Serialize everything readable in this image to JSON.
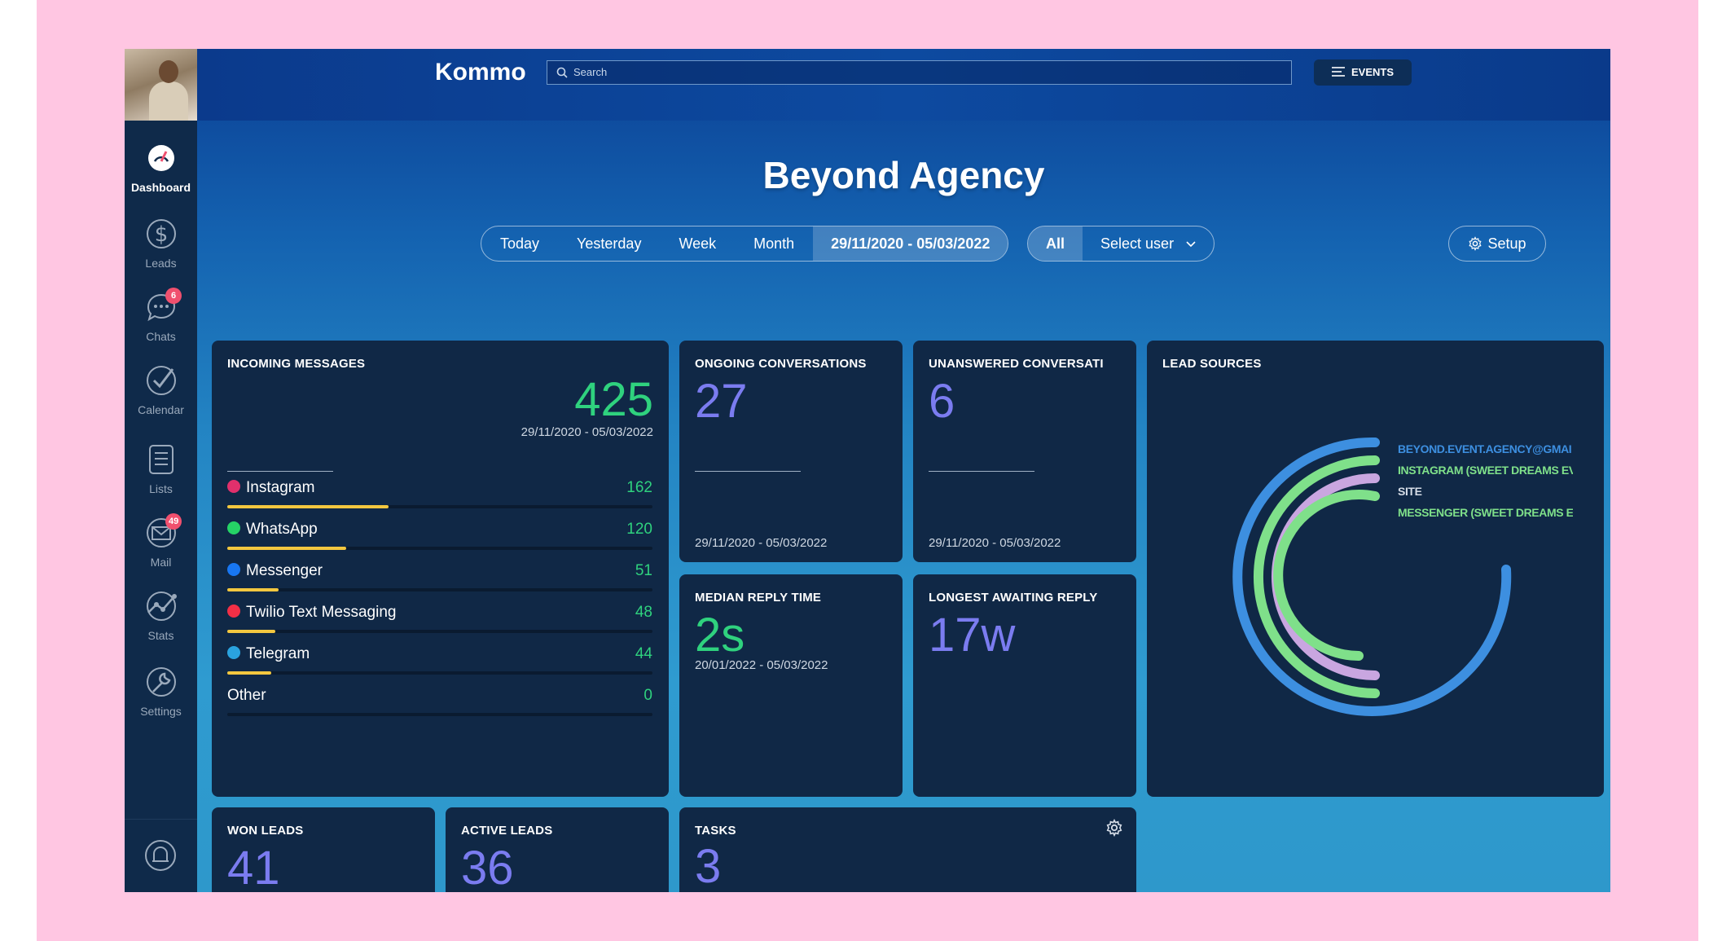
{
  "app": {
    "logo": "Kommo",
    "title": "Beyond Agency"
  },
  "sidebar": {
    "items": [
      {
        "label": "Dashboard",
        "icon": "dashboard-icon",
        "active": true
      },
      {
        "label": "Leads",
        "icon": "dollar-icon"
      },
      {
        "label": "Chats",
        "icon": "chat-icon",
        "badge": "6"
      },
      {
        "label": "Calendar",
        "icon": "checkmark-icon"
      },
      {
        "label": "Lists",
        "icon": "list-icon"
      },
      {
        "label": "Mail",
        "icon": "mail-icon",
        "badge": "49"
      },
      {
        "label": "Stats",
        "icon": "stats-icon"
      },
      {
        "label": "Settings",
        "icon": "settings-icon"
      }
    ]
  },
  "topbar": {
    "search_placeholder": "Search",
    "events_label": "EVENTS"
  },
  "filters": {
    "periods": [
      "Today",
      "Yesterday",
      "Week",
      "Month",
      "29/11/2020 - 05/03/2022"
    ],
    "selected_period": "29/11/2020 - 05/03/2022",
    "scope_all": "All",
    "select_user": "Select user",
    "setup_label": "Setup"
  },
  "incoming": {
    "title": "INCOMING MESSAGES",
    "total": "425",
    "range": "29/11/2020 - 05/03/2022",
    "sources": [
      {
        "name": "Instagram",
        "value": "162",
        "share": 0.38,
        "color": "#e1306c"
      },
      {
        "name": "WhatsApp",
        "value": "120",
        "share": 0.28,
        "color": "#25d366"
      },
      {
        "name": "Messenger",
        "value": "51",
        "share": 0.12,
        "color": "#1877f2"
      },
      {
        "name": "Twilio Text Messaging",
        "value": "48",
        "share": 0.113,
        "color": "#f22f46"
      },
      {
        "name": "Telegram",
        "value": "44",
        "share": 0.104,
        "color": "#2aa3df"
      },
      {
        "name": "Other",
        "value": "0",
        "share": 0,
        "color": ""
      }
    ]
  },
  "ongoing": {
    "title": "ONGOING CONVERSATIONS",
    "value": "27",
    "range": "29/11/2020 - 05/03/2022"
  },
  "unanswered": {
    "title": "UNANSWERED CONVERSATI",
    "value": "6",
    "range": "29/11/2020 - 05/03/2022"
  },
  "median": {
    "title": "MEDIAN REPLY TIME",
    "value": "2s",
    "range": "20/01/2022 - 05/03/2022"
  },
  "longest": {
    "title": "LONGEST AWAITING REPLY",
    "value": "17w"
  },
  "lead_sources": {
    "title": "LEAD SOURCES",
    "legend": [
      {
        "label": "BEYOND.EVENT.AGENCY@GMAI",
        "color": "#3d8fe0"
      },
      {
        "label": "INSTAGRAM (SWEET DREAMS EV",
        "color": "#7fe08a"
      },
      {
        "label": "SITE",
        "color": "#c9a6e0"
      },
      {
        "label": "MESSENGER (SWEET DREAMS E",
        "color": "#7fe08a"
      }
    ]
  },
  "won": {
    "title": "WON LEADS",
    "value": "41"
  },
  "active": {
    "title": "ACTIVE LEADS",
    "value": "36"
  },
  "tasks": {
    "title": "TASKS",
    "value": "3"
  }
}
